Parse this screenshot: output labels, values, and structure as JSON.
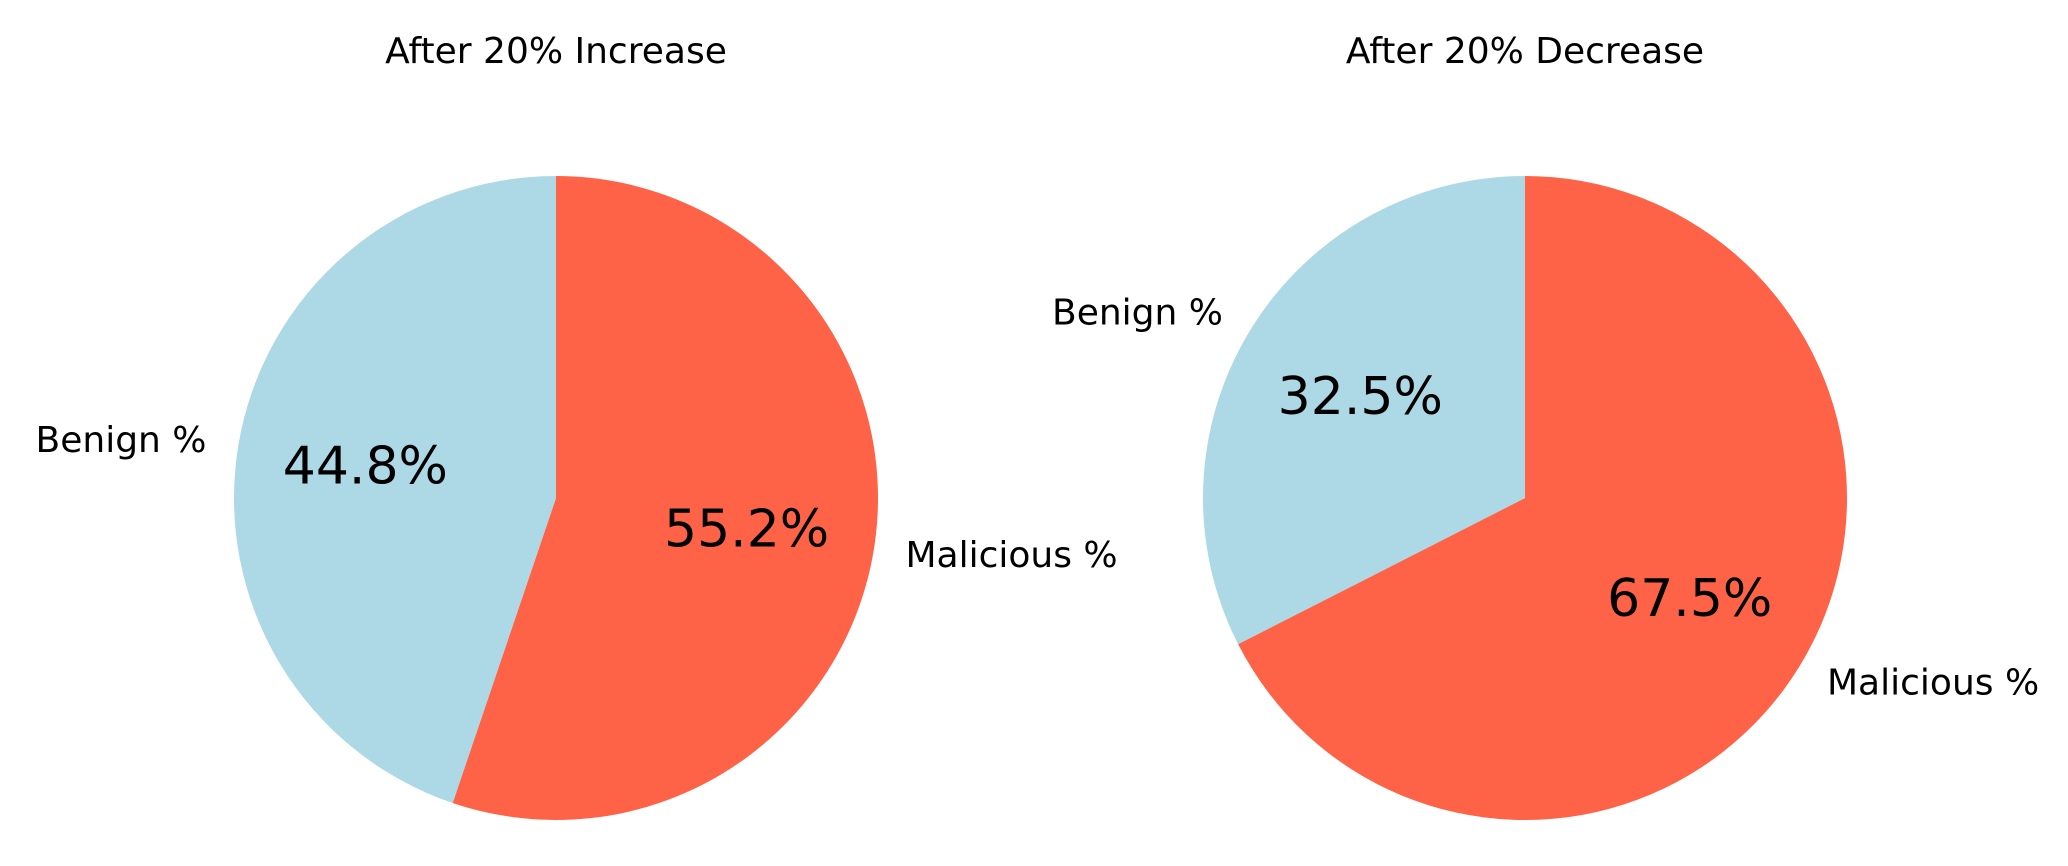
{
  "chart_data": [
    {
      "type": "pie",
      "title": "After 20% Increase",
      "categories": [
        "Malicious %",
        "Benign %"
      ],
      "values": [
        55.2,
        44.8
      ],
      "slice_labels": [
        "55.2%",
        "44.8%"
      ],
      "colors": [
        "#ff6347",
        "#add8e6"
      ],
      "legend": "none"
    },
    {
      "type": "pie",
      "title": "After 20% Decrease",
      "categories": [
        "Malicious %",
        "Benign %"
      ],
      "values": [
        67.5,
        32.5
      ],
      "slice_labels": [
        "67.5%",
        "32.5%"
      ],
      "colors": [
        "#ff6347",
        "#add8e6"
      ],
      "legend": "none"
    }
  ]
}
